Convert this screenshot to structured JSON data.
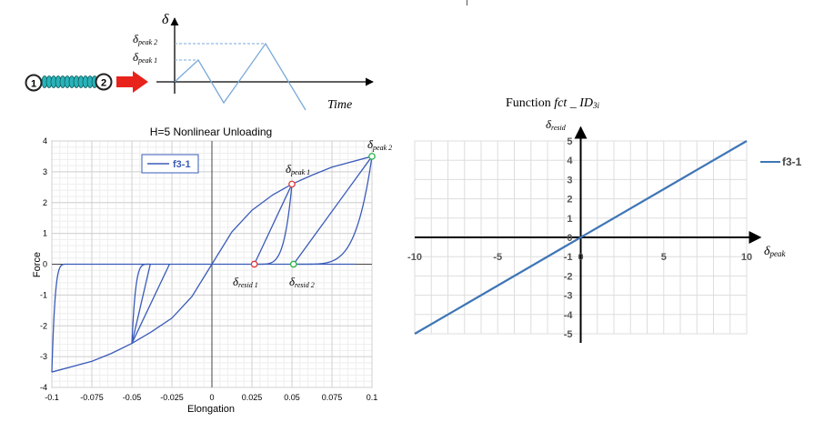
{
  "top_diagram": {
    "y_symbol": "δ",
    "peak2_label": "δpeak 2",
    "peak1_label": "δpeak 1",
    "x_axis_label": "Time",
    "node_left": "1",
    "node_right": "2",
    "colors": {
      "spring": "#2ab3b8",
      "arrow": "#e8231c",
      "signal": "#7aaad8",
      "dashed": "#7aaad8"
    }
  },
  "chart_data": [
    {
      "type": "line",
      "title": "H=5 Nonlinear Unloading",
      "xlabel": "Elongation",
      "ylabel": "Force",
      "xlim": [
        -0.1,
        0.1
      ],
      "ylim": [
        -4,
        4
      ],
      "x_ticks": [
        "-0.1",
        "-0.075",
        "-0.05",
        "-0.025",
        "0",
        "0.025",
        "0.05",
        "0.075",
        "0.1"
      ],
      "y_ticks": [
        "-4",
        "-3",
        "-2",
        "-1",
        "0",
        "1",
        "2",
        "3",
        "4"
      ],
      "grid": true,
      "legend": {
        "placement": "top-left",
        "entries": [
          "f3-1"
        ]
      },
      "series": [
        {
          "name": "f3-1",
          "color": "#3a5bb8",
          "backbone": [
            [
              -0.1,
              -3.5
            ],
            [
              -0.075,
              -3.15
            ],
            [
              -0.063,
              -2.9
            ],
            [
              -0.05,
              -2.57
            ],
            [
              -0.038,
              -2.2
            ],
            [
              -0.025,
              -1.75
            ],
            [
              -0.0125,
              -1.05
            ],
            [
              0,
              0
            ],
            [
              0.0125,
              1.05
            ],
            [
              0.025,
              1.75
            ],
            [
              0.038,
              2.25
            ],
            [
              0.05,
              2.6
            ],
            [
              0.063,
              2.9
            ],
            [
              0.075,
              3.15
            ],
            [
              0.1,
              3.5
            ]
          ],
          "unloading_linear": [
            [
              [
                0.05,
                2.6
              ],
              [
                0.0265,
                0
              ]
            ],
            [
              [
                0.1,
                3.5
              ],
              [
                0.051,
                0
              ]
            ],
            [
              [
                -0.05,
                -2.57
              ],
              [
                -0.0385,
                0
              ]
            ],
            [
              [
                -0.05,
                -2.57
              ],
              [
                -0.0265,
                0
              ]
            ]
          ],
          "unloading_curved": [
            {
              "peak": [
                0.05,
                2.6
              ],
              "resid": 0.0265,
              "power": 5
            },
            {
              "peak": [
                0.1,
                3.5
              ],
              "resid": 0.051,
              "power": 5
            },
            {
              "peak": [
                -0.05,
                -2.57
              ],
              "resid": -0.0385,
              "power": 5
            },
            {
              "peak": [
                -0.1,
                -3.5
              ],
              "resid": -0.09,
              "power": 5
            }
          ],
          "zero_segment": [
            -0.09,
            0.09
          ]
        }
      ],
      "annotations": [
        {
          "label": "δpeak 1",
          "x": 0.05,
          "y": 2.6,
          "marker_color": "#e03a3a"
        },
        {
          "label": "δpeak 2",
          "x": 0.1,
          "y": 3.5,
          "marker_color": "#2cb24a"
        },
        {
          "label": "δresid 1",
          "x": 0.0265,
          "y": 0,
          "marker_color": "#e03a3a"
        },
        {
          "label": "δresid 2",
          "x": 0.051,
          "y": 0,
          "marker_color": "#2cb24a"
        }
      ]
    },
    {
      "type": "line",
      "title": "Function fct _ ID3i",
      "xlabel": "δpeak",
      "ylabel": "δresid",
      "xlim": [
        -10,
        10
      ],
      "ylim": [
        -5,
        5
      ],
      "x_ticks": [
        "-10",
        "-5",
        "0",
        "5",
        "10"
      ],
      "y_ticks": [
        "-5",
        "-4",
        "-3",
        "-2",
        "-1",
        "0",
        "1",
        "2",
        "3",
        "4",
        "5"
      ],
      "grid": true,
      "legend": {
        "placement": "right",
        "entries": [
          "f3-1"
        ]
      },
      "series": [
        {
          "name": "f3-1",
          "color": "#3e76b6",
          "x": [
            -10,
            10
          ],
          "y": [
            -5,
            5
          ]
        }
      ]
    }
  ]
}
